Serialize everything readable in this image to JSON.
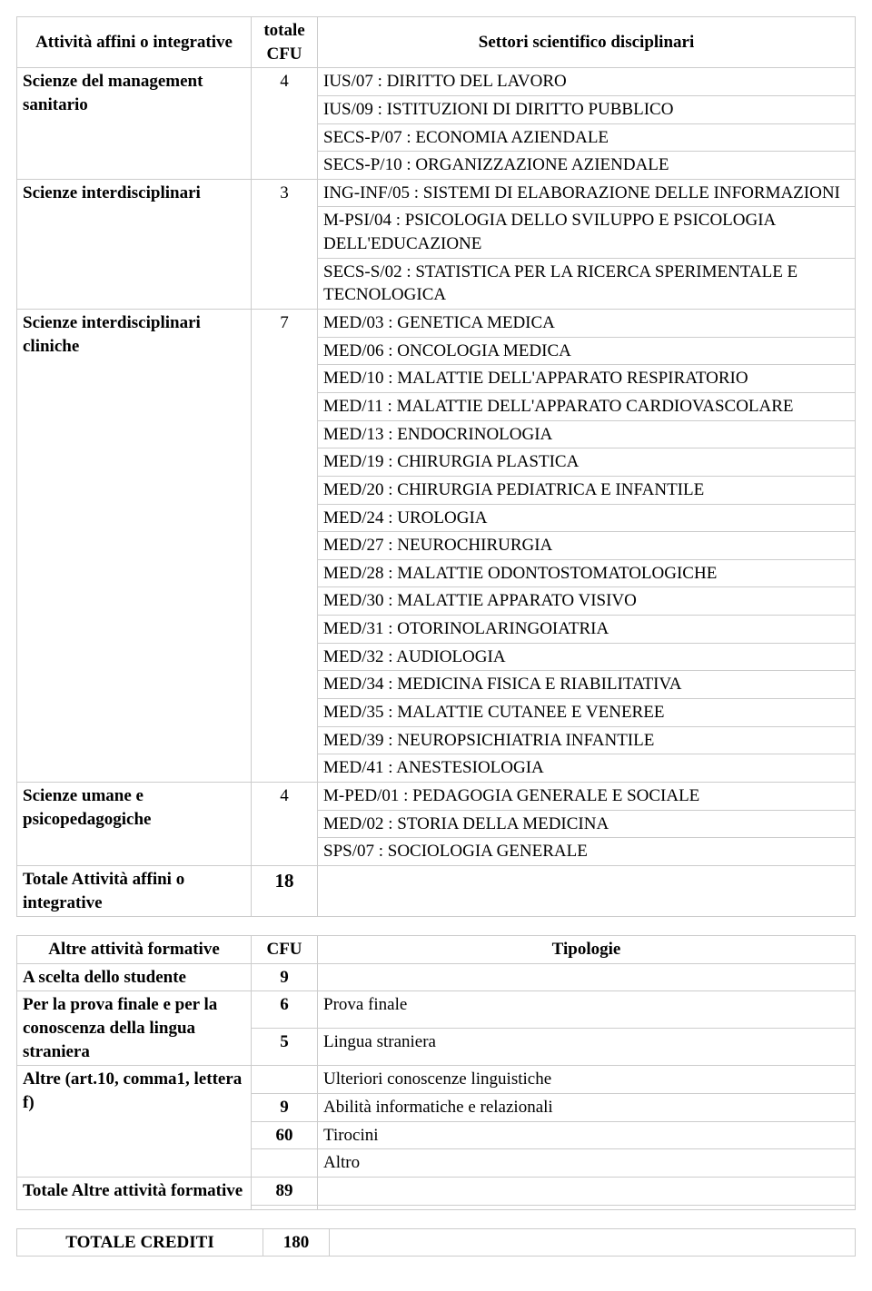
{
  "main_table": {
    "headers": {
      "activity": "Attività affini o integrative",
      "cfu": "totale CFU",
      "sectors": "Settori scientifico disciplinari"
    },
    "rows": [
      {
        "name": "Scienze del management sanitario",
        "cfu": "4",
        "sectors": [
          "IUS/07 : DIRITTO DEL LAVORO",
          "IUS/09 : ISTITUZIONI DI DIRITTO PUBBLICO",
          "SECS-P/07 : ECONOMIA AZIENDALE",
          "SECS-P/10 : ORGANIZZAZIONE AZIENDALE"
        ]
      },
      {
        "name": "Scienze interdisciplinari",
        "cfu": "3",
        "sectors": [
          "ING-INF/05 : SISTEMI DI ELABORAZIONE DELLE INFORMAZIONI",
          "M-PSI/04 : PSICOLOGIA DELLO SVILUPPO E PSICOLOGIA DELL'EDUCAZIONE",
          "SECS-S/02 : STATISTICA PER LA RICERCA SPERIMENTALE E TECNOLOGICA"
        ]
      },
      {
        "name": "Scienze interdisciplinari cliniche",
        "cfu": "7",
        "sectors": [
          "MED/03 : GENETICA MEDICA",
          "MED/06 : ONCOLOGIA MEDICA",
          "MED/10 : MALATTIE DELL'APPARATO RESPIRATORIO",
          "MED/11 : MALATTIE DELL'APPARATO CARDIOVASCOLARE",
          "MED/13 : ENDOCRINOLOGIA",
          "MED/19 : CHIRURGIA PLASTICA",
          "MED/20 : CHIRURGIA PEDIATRICA E INFANTILE",
          "MED/24 : UROLOGIA",
          "MED/27 : NEUROCHIRURGIA",
          "MED/28 : MALATTIE ODONTOSTOMATOLOGICHE",
          "MED/30 : MALATTIE APPARATO VISIVO",
          "MED/31 : OTORINOLARINGOIATRIA",
          "MED/32 : AUDIOLOGIA",
          "MED/34 : MEDICINA FISICA E RIABILITATIVA",
          "MED/35 : MALATTIE CUTANEE E VENEREE",
          "MED/39 : NEUROPSICHIATRIA INFANTILE",
          "MED/41 : ANESTESIOLOGIA"
        ]
      },
      {
        "name": "Scienze umane e psicopedagogiche",
        "cfu": "4",
        "sectors": [
          "M-PED/01 : PEDAGOGIA GENERALE E SOCIALE",
          "MED/02 : STORIA DELLA MEDICINA",
          "SPS/07 : SOCIOLOGIA GENERALE"
        ]
      }
    ],
    "total": {
      "label": "Totale Attività affini o integrative",
      "cfu": "18"
    }
  },
  "other_table": {
    "headers": {
      "activity": "Altre attività formative",
      "cfu": "CFU",
      "types": "Tipologie"
    },
    "rows": [
      {
        "name": "A scelta dello studente",
        "sub": [
          {
            "cfu": "9",
            "type": ""
          }
        ]
      },
      {
        "name": "Per la prova finale e per la conoscenza della lingua straniera",
        "sub": [
          {
            "cfu": "6",
            "type": "Prova finale"
          },
          {
            "cfu": "5",
            "type": "Lingua straniera"
          }
        ]
      },
      {
        "name": "Altre (art.10, comma1, lettera f)",
        "sub": [
          {
            "cfu": "",
            "type": "Ulteriori conoscenze linguistiche"
          },
          {
            "cfu": "9",
            "type": "Abilità informatiche e relazionali"
          },
          {
            "cfu": "60",
            "type": "Tirocini"
          },
          {
            "cfu": "",
            "type": "Altro"
          }
        ]
      }
    ],
    "total": {
      "label": "Totale Altre attività formative",
      "sub": [
        {
          "cfu": "89",
          "type": ""
        },
        {
          "cfu": "",
          "type": ""
        }
      ]
    }
  },
  "grand_total": {
    "label": "TOTALE CREDITI",
    "cfu": "180"
  }
}
